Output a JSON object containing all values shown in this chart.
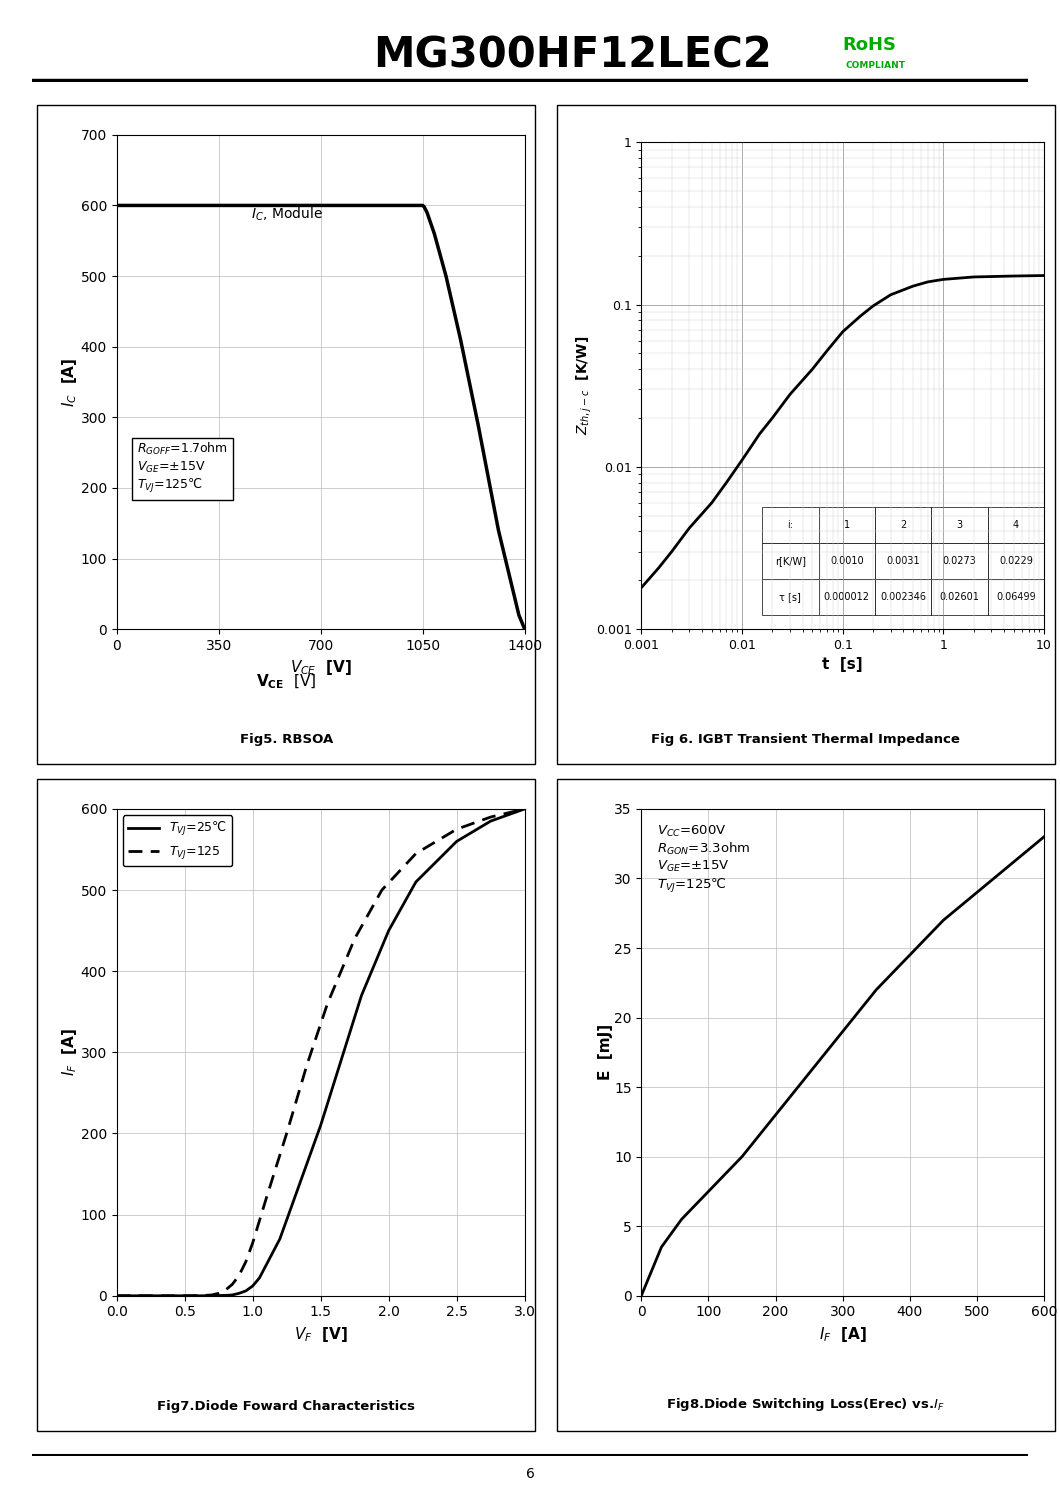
{
  "title": "MG300HF12LEC2",
  "fig1_xlabel": "V_{CE}  [V]",
  "fig1_ylabel_top": "I_C",
  "fig1_ylabel_bot": "[A]",
  "fig1_annotation": "I_C, Module",
  "fig1_box_text": "R_GOFF=1.7ohm\nV_GE=±15V\nTVJ=125℃",
  "fig1_caption": "Fig5. RBSOA",
  "fig1_xlim": [
    0,
    1400
  ],
  "fig1_ylim": [
    0,
    700
  ],
  "fig1_xticks": [
    0,
    350,
    700,
    1050,
    1400
  ],
  "fig1_yticks": [
    0,
    100,
    200,
    300,
    400,
    500,
    600,
    700
  ],
  "fig1_curve_x": [
    0,
    1050,
    1055,
    1065,
    1090,
    1130,
    1180,
    1240,
    1310,
    1380,
    1400
  ],
  "fig1_curve_y": [
    600,
    600,
    598,
    590,
    560,
    500,
    410,
    290,
    140,
    20,
    0
  ],
  "fig2_caption": "Fig 6. IGBT Transient Thermal Impedance",
  "fig2_xlabel": "t  [s]",
  "fig2_ylabel": "Z_{th,j-c}  [K/W]",
  "fig2_xlim": [
    0.001,
    10
  ],
  "fig2_ylim": [
    0.001,
    1
  ],
  "fig2_table_i": [
    "1",
    "2",
    "3",
    "4"
  ],
  "fig2_table_r": [
    "0.0010",
    "0.0031",
    "0.0273",
    "0.0229"
  ],
  "fig2_table_tau": [
    "0.000012",
    "0.002346",
    "0.02601",
    "0.06499"
  ],
  "fig2_curve_x": [
    0.001,
    0.0015,
    0.002,
    0.003,
    0.005,
    0.007,
    0.01,
    0.015,
    0.02,
    0.03,
    0.05,
    0.07,
    0.1,
    0.15,
    0.2,
    0.3,
    0.5,
    0.7,
    1.0,
    2.0,
    5.0,
    10.0
  ],
  "fig2_curve_y": [
    0.0018,
    0.0024,
    0.003,
    0.0042,
    0.006,
    0.008,
    0.011,
    0.016,
    0.02,
    0.028,
    0.04,
    0.052,
    0.068,
    0.085,
    0.098,
    0.115,
    0.13,
    0.138,
    0.143,
    0.148,
    0.15,
    0.151
  ],
  "fig3_caption": "Fig7.Diode Foward Characteristics",
  "fig3_xlabel": "V_F  [V]",
  "fig3_ylabel": "I_F  [A]",
  "fig3_xlim": [
    0,
    3
  ],
  "fig3_ylim": [
    0,
    600
  ],
  "fig3_xticks": [
    0,
    0.5,
    1.0,
    1.5,
    2.0,
    2.5,
    3.0
  ],
  "fig3_yticks": [
    0,
    100,
    200,
    300,
    400,
    500,
    600
  ],
  "fig3_curve1_label": "TVJ=25℃",
  "fig3_curve2_label": "TVJ=125",
  "fig3_curve1_x": [
    0.0,
    0.7,
    0.8,
    0.85,
    0.9,
    0.95,
    1.0,
    1.05,
    1.1,
    1.2,
    1.35,
    1.5,
    1.65,
    1.8,
    2.0,
    2.2,
    2.5,
    2.75,
    3.0
  ],
  "fig3_curve1_y": [
    0,
    0,
    0.5,
    1,
    3,
    6,
    12,
    22,
    38,
    70,
    140,
    210,
    290,
    370,
    450,
    510,
    560,
    585,
    600
  ],
  "fig3_curve2_x": [
    0.0,
    0.55,
    0.65,
    0.7,
    0.75,
    0.8,
    0.85,
    0.9,
    0.95,
    1.0,
    1.1,
    1.25,
    1.4,
    1.55,
    1.75,
    1.95,
    2.2,
    2.5,
    2.75,
    3.0
  ],
  "fig3_curve2_y": [
    0,
    0,
    0.5,
    1,
    3,
    7,
    14,
    25,
    42,
    65,
    120,
    200,
    285,
    360,
    440,
    500,
    545,
    575,
    590,
    600
  ],
  "fig4_caption": "Fig8.Diode Switching Loss(Erec) vs.I_F",
  "fig4_xlabel": "I_F  [A]",
  "fig4_ylabel": "E  [mJ]",
  "fig4_annotation": "VCC=600V\nRGON=3.3ohm\nVGE=±15V\nTVJ=125℃",
  "fig4_xlim": [
    0,
    600
  ],
  "fig4_ylim": [
    0,
    35
  ],
  "fig4_xticks": [
    0,
    100,
    200,
    300,
    400,
    500,
    600
  ],
  "fig4_yticks": [
    0,
    5,
    10,
    15,
    20,
    25,
    30,
    35
  ],
  "fig4_curve_x": [
    0,
    30,
    60,
    100,
    150,
    200,
    250,
    300,
    350,
    400,
    450,
    500,
    550,
    600
  ],
  "fig4_curve_y": [
    0,
    3.5,
    5.5,
    7.5,
    10,
    13,
    16,
    19,
    22,
    24.5,
    27,
    29,
    31,
    33
  ]
}
